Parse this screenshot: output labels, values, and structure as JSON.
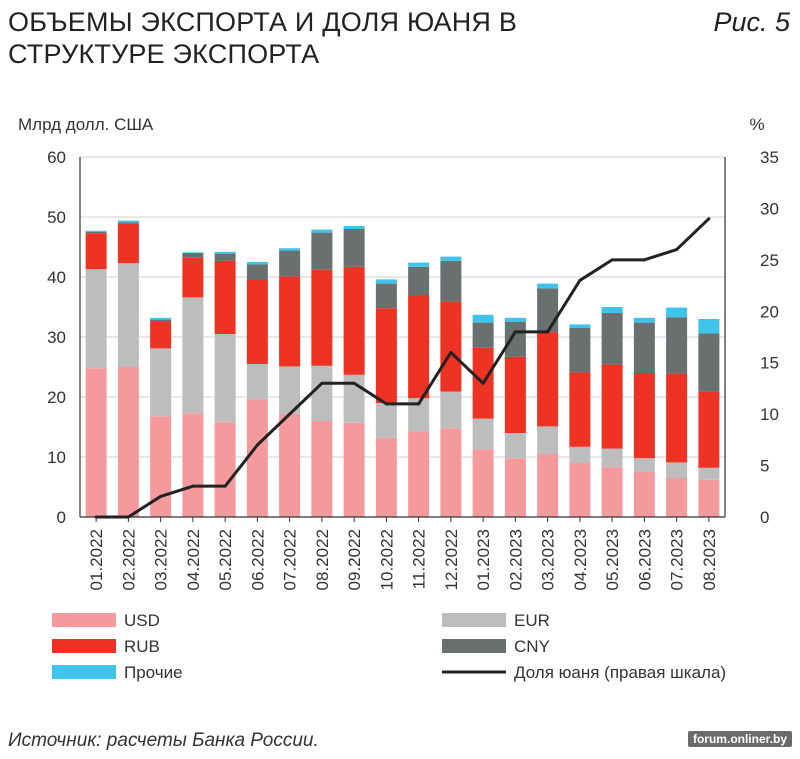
{
  "header": {
    "title": "ОБЪЕМЫ ЭКСПОРТА И ДОЛЯ ЮАНЯ В СТРУКТУРЕ ЭКСПОРТА",
    "figure_label": "Рис. 5"
  },
  "footer": {
    "source": "Источник: расчеты Банка России.",
    "watermark": "forum.onliner.by"
  },
  "chart_data": {
    "type": "bar",
    "stacked": true,
    "title": "ОБЪЕМЫ ЭКСПОРТА И ДОЛЯ ЮАНЯ В СТРУКТУРЕ ЭКСПОРТА",
    "ylabel": "Млрд долл. США",
    "y2label": "%",
    "ylim": [
      0,
      60
    ],
    "y2lim": [
      0,
      35
    ],
    "yticks": [
      0,
      10,
      20,
      30,
      40,
      50,
      60
    ],
    "y2ticks": [
      0,
      5,
      10,
      15,
      20,
      25,
      30,
      35
    ],
    "grid": true,
    "categories": [
      "01.2022",
      "02.2022",
      "03.2022",
      "04.2022",
      "05.2022",
      "06.2022",
      "07.2022",
      "08.2022",
      "09.2022",
      "10.2022",
      "11.2022",
      "12.2022",
      "01.2023",
      "02.2023",
      "03.2023",
      "04.2023",
      "05.2023",
      "06.2023",
      "07.2023",
      "08.2023"
    ],
    "series": [
      {
        "name": "USD",
        "color": "#f59a9c",
        "values": [
          24.8,
          25,
          16.8,
          17.3,
          15.8,
          19.6,
          17.2,
          16,
          15.7,
          13.2,
          14.3,
          14.8,
          11.3,
          9.8,
          10.5,
          9,
          8.3,
          7.5,
          6.5,
          6.2
        ]
      },
      {
        "name": "EUR",
        "color": "#bdbdbd",
        "values": [
          16.5,
          17.3,
          11.3,
          19.3,
          14.7,
          5.9,
          7.9,
          9.2,
          8,
          5.8,
          5.5,
          6.1,
          5.1,
          4.2,
          4.6,
          2.7,
          3.1,
          2.3,
          2.6,
          2
        ]
      },
      {
        "name": "RUB",
        "color": "#ee3224",
        "values": [
          6,
          6.6,
          4.4,
          6.6,
          12.2,
          14,
          15,
          16,
          18,
          15.8,
          17.2,
          15,
          11.8,
          12.7,
          15.7,
          12.4,
          14,
          14.2,
          14.8,
          12.7
        ]
      },
      {
        "name": "CNY",
        "color": "#6a6f70",
        "values": [
          0.2,
          0.2,
          0.4,
          0.8,
          1.2,
          2.6,
          4.3,
          6.2,
          6.3,
          4.1,
          4.7,
          6.8,
          4.2,
          5.8,
          7.3,
          7.4,
          8.6,
          8.4,
          9.4,
          9.7
        ]
      },
      {
        "name": "Прочие",
        "color": "#3ec3ea",
        "values": [
          0.2,
          0.3,
          0.3,
          0.1,
          0.3,
          0.4,
          0.4,
          0.5,
          0.5,
          0.7,
          0.7,
          0.7,
          1.3,
          0.7,
          0.8,
          0.6,
          1,
          0.8,
          1.6,
          2.4
        ]
      }
    ],
    "line": {
      "name": "Доля юаня (правая шкала)",
      "axis": "right",
      "color": "#222222",
      "values": [
        0,
        0,
        2,
        3,
        3,
        7,
        10,
        13,
        13,
        11,
        11,
        16,
        13,
        18,
        18,
        23,
        25,
        25,
        26,
        29
      ]
    },
    "legend": {
      "position": "bottom",
      "items": [
        {
          "label": "USD",
          "color": "#f59a9c",
          "kind": "bar"
        },
        {
          "label": "EUR",
          "color": "#bdbdbd",
          "kind": "bar"
        },
        {
          "label": "RUB",
          "color": "#ee3224",
          "kind": "bar"
        },
        {
          "label": "CNY",
          "color": "#6a6f70",
          "kind": "bar"
        },
        {
          "label": "Прочие",
          "color": "#3ec3ea",
          "kind": "bar"
        },
        {
          "label": "Доля юаня (правая шкала)",
          "color": "#222222",
          "kind": "line"
        }
      ]
    }
  }
}
